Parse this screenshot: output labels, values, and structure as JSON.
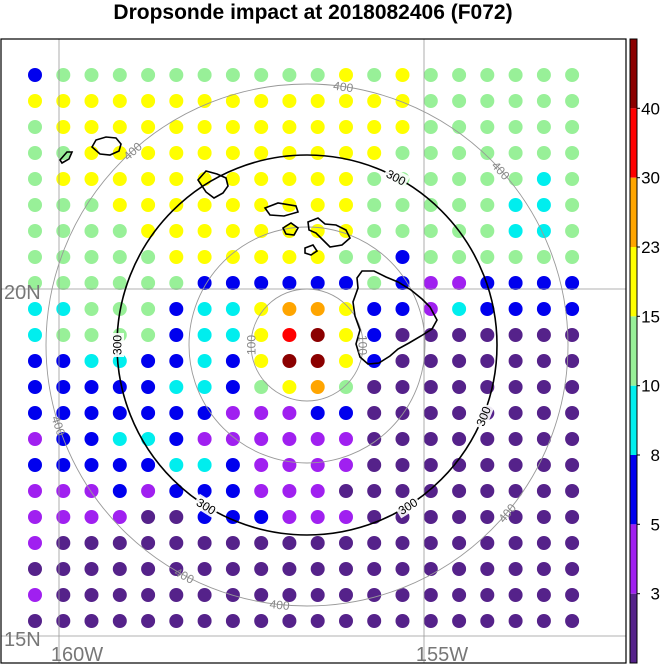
{
  "title": "Dropsonde impact at 2018082406 (F072)",
  "map": {
    "lat_labels": [
      {
        "text": "20N",
        "lat": 20
      },
      {
        "text": "15N",
        "lat": 15
      }
    ],
    "lon_labels": [
      {
        "text": "160W",
        "lon": -160
      },
      {
        "text": "155W",
        "lon": -155
      }
    ],
    "gridlines": {
      "lat": [
        15,
        20
      ],
      "lon": [
        -160,
        -155
      ]
    },
    "range_rings": [
      {
        "radius": 100,
        "highlight": false,
        "labels": [
          "100",
          "100"
        ]
      },
      {
        "radius": 200,
        "highlight": false,
        "labels": []
      },
      {
        "radius": 300,
        "highlight": true,
        "labels": [
          "300",
          "300",
          "300",
          "300",
          "300"
        ]
      },
      {
        "radius": 400,
        "highlight": false,
        "labels": [
          "400",
          "400",
          "400",
          "400",
          "400",
          "400",
          "400"
        ]
      }
    ],
    "colors": {
      "ring": "#999999",
      "ring_highlight": "#000000",
      "coast": "#000000"
    }
  },
  "colorbar": {
    "tick_labels": [
      "3",
      "5",
      "8",
      "10",
      "15",
      "23",
      "30",
      "40"
    ],
    "colors": [
      "#55228a",
      "#a020f0",
      "#0000ee",
      "#00eeee",
      "#98f098",
      "#ffff00",
      "#ffa500",
      "#ff0000",
      "#8b0000"
    ]
  },
  "grid_levels": [
    "2 4 4 4 4 4 4 4 4 4 4 5 4 5 4 4 4 4 4 4",
    "5 5 5 5 5 5 5 5 5 5 5 5 5 5 4 4 4 4 4 4",
    "4 5 5 5 5 5 5 5 5 5 5 5 5 5 4 4 4 4 4 4",
    "4 4 5 5 5 5 5 5 5 5 5 5 5 4 4 4 4 4 4 4",
    "4 5 5 5 5 5 5 5 5 5 5 5 4 4 4 4 4 4 3 4",
    "4 4 4 5 5 5 5 5 5 5 5 5 4 4 4 4 4 3 3 4",
    "4 4 4 4 5 5 5 5 5 5 5 5 4 4 4 4 4 3 3 4",
    "4 4 4 4 4 5 5 5 5 5 5 4 4 2 4 4 4 4 4 4",
    "4 4 4 4 4 4 2 2 2 2 2 2 4 2 1 1 2 2 2 2",
    "3 3 4 4 4 2 3 3 5 6 6 5 2 2 1 3 2 2 2 2",
    "3 4 4 4 4 2 3 3 5 7 8 5 2 0 0 0 0 0 0 0",
    "2 2 3 3 2 2 3 2 5 8 8 5 2 0 0 0 0 0 0 0",
    "2 2 2 2 2 3 3 2 4 5 6 4 0 0 0 0 0 0 0 0",
    "2 2 2 2 2 2 2 1 1 1 2 2 0 0 0 0 0 0 0 0",
    "1 2 2 3 3 2 1 1 1 1 1 1 0 0 0 0 0 0 0 0",
    "2 2 2 2 2 3 3 2 1 1 1 1 0 0 0 0 0 0 0 0",
    "1 1 1 2 1 2 2 2 1 1 1 0 0 0 0 0 0 0 0 0",
    "1 1 1 1 0 0 2 2 2 1 1 1 0 0 0 0 0 0 0 0",
    "1 0 0 0 0 0 0 0 0 0 0 0 0 0 0 0 0 0 0 0",
    "0 0 0 0 0 0 0 0 0 0 0 0 0 0 0 0 0 0 0 0",
    "1 0 0 0 0 0 0 0 0 0 0 0 0 0 0 0 0 0 0 0",
    "0 0 0 0 0 0 0 0 0 0 0 0 0 0 0 0 0 0 0 0"
  ]
}
